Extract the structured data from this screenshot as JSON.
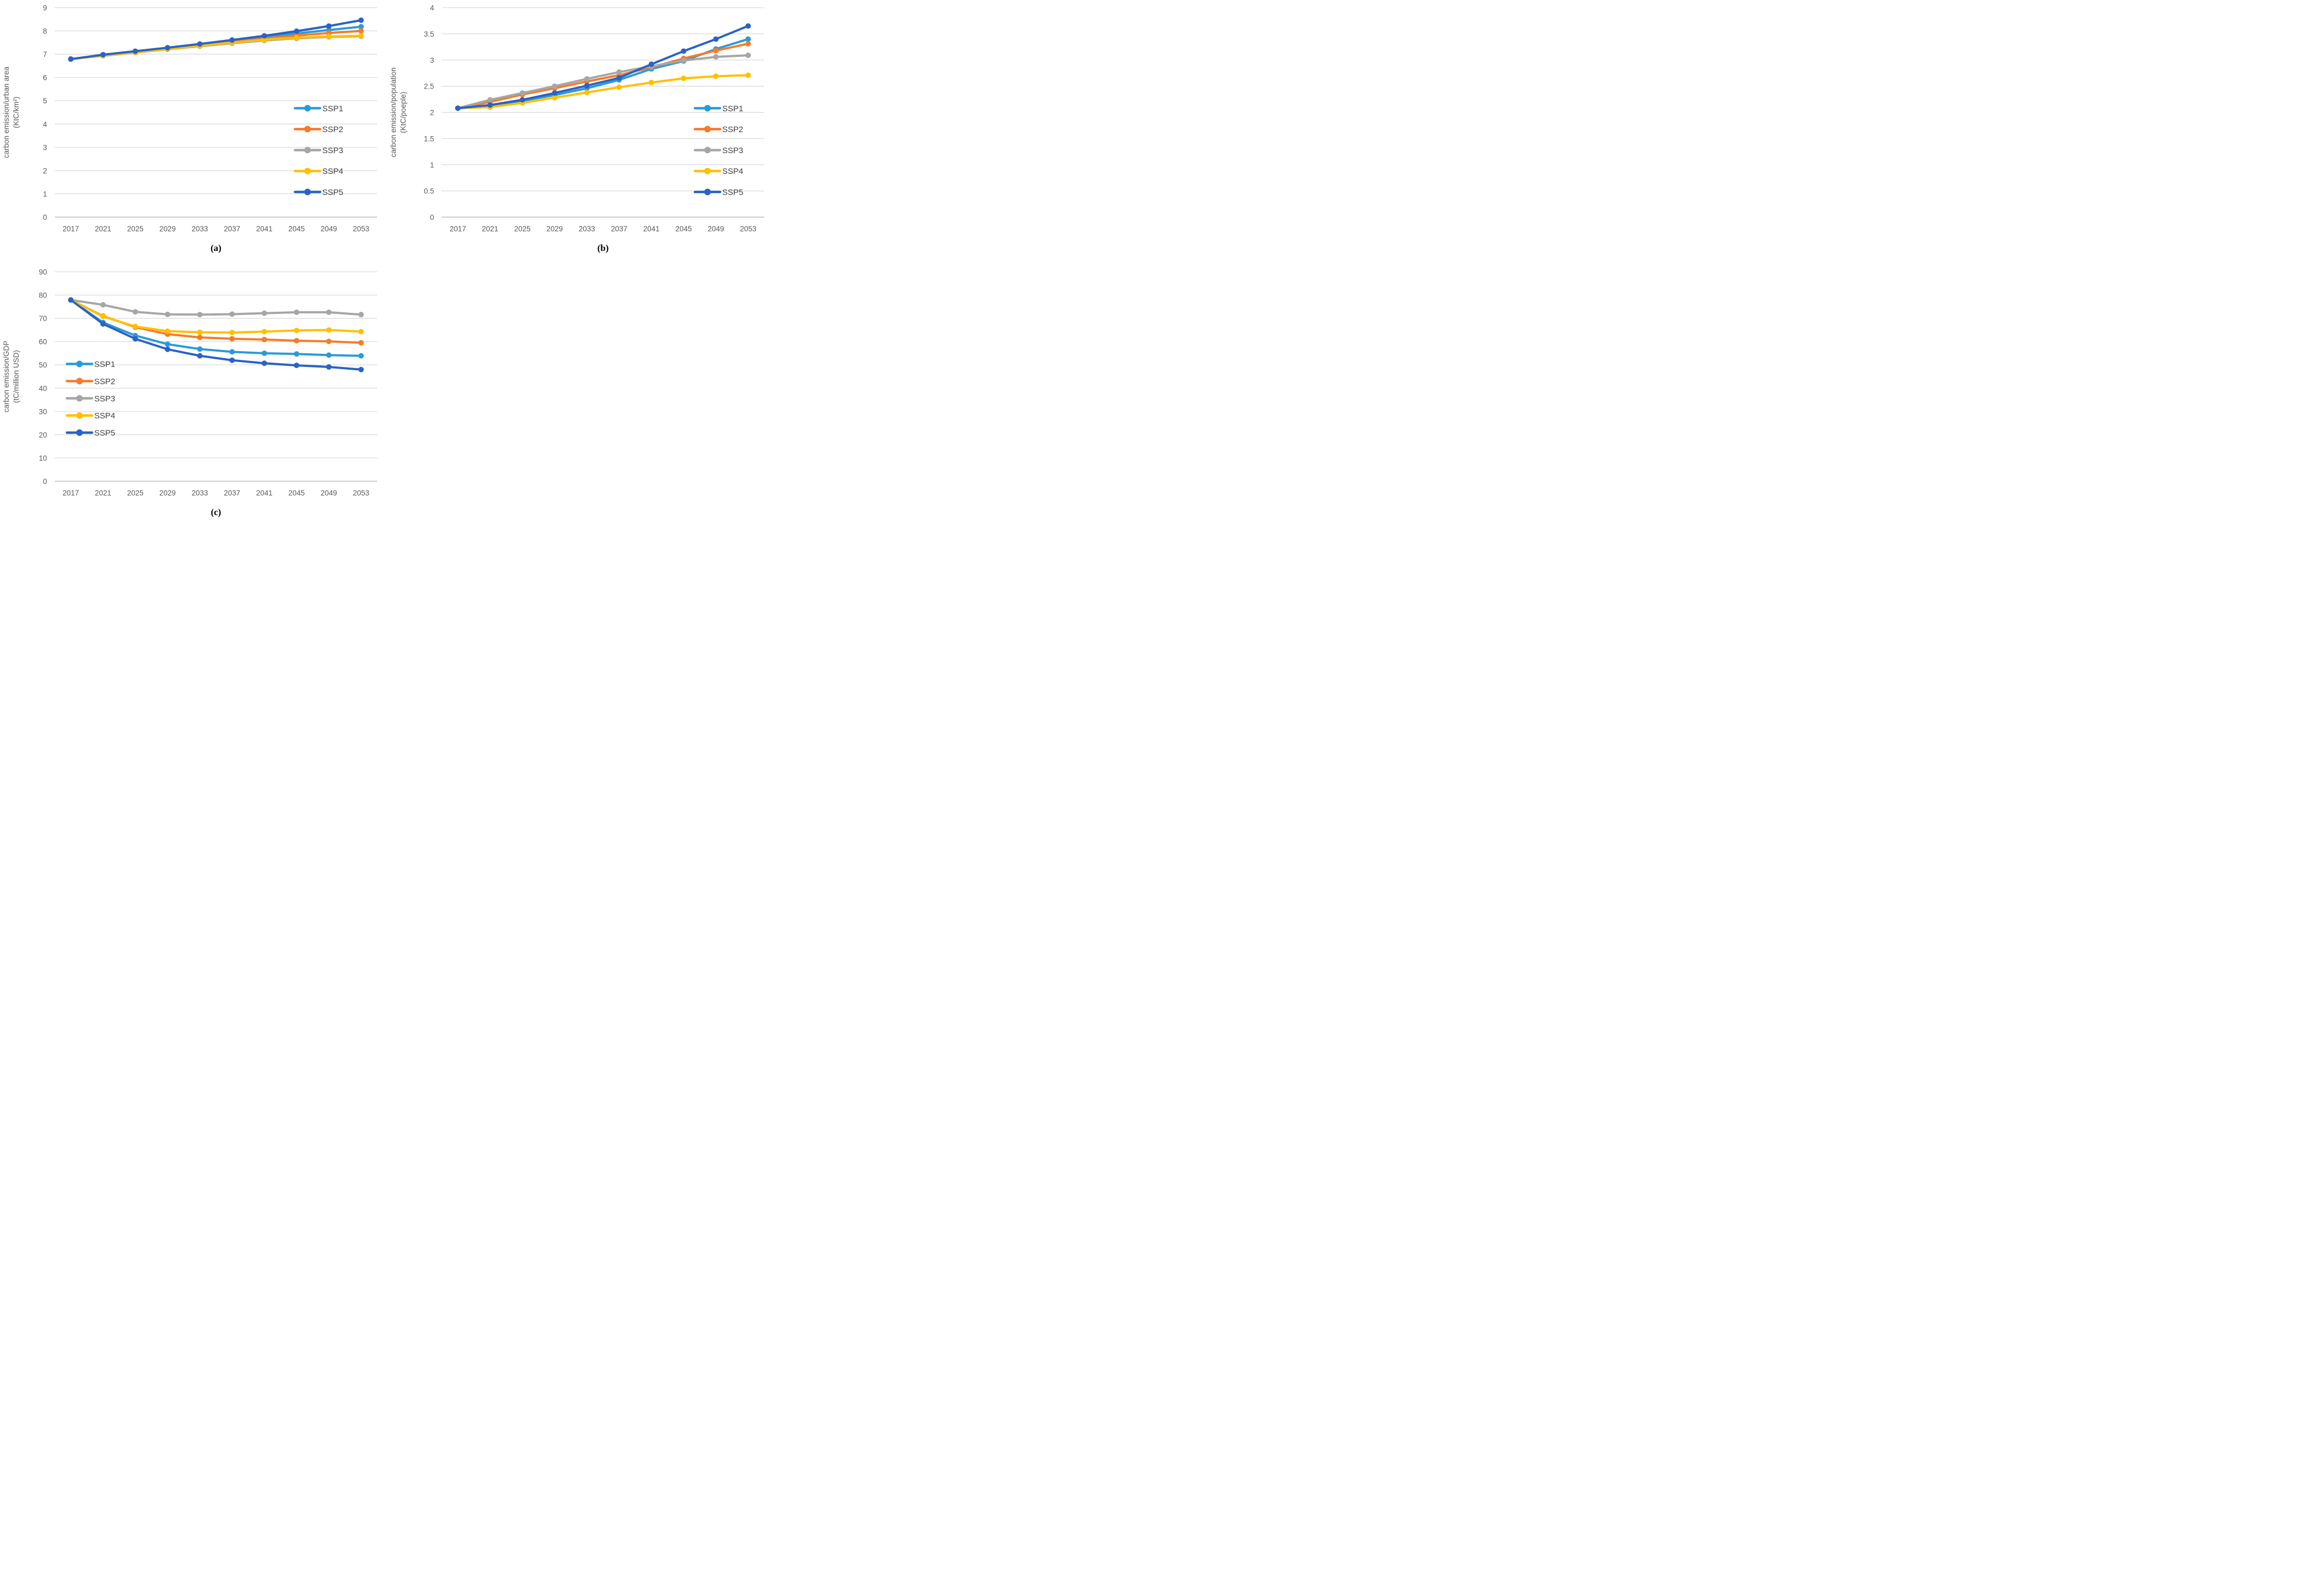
{
  "figure_colors": {
    "gridline": "#D9D9D9",
    "axis_line": "#C6C6C6",
    "tick_text": "#595959",
    "caption_text": "#000000"
  },
  "chart_data": [
    {
      "id": "chart-a",
      "type": "line",
      "caption": "(a)",
      "ylabel_lines": [
        "carbon emission/urban area",
        "(KtC/km²)"
      ],
      "categories": [
        "2017",
        "2021",
        "2025",
        "2029",
        "2033",
        "2037",
        "2041",
        "2045",
        "2049",
        "2053"
      ],
      "y_axis": {
        "min": 0,
        "max": 9,
        "ticks": [
          0,
          1,
          2,
          3,
          4,
          5,
          6,
          7,
          8,
          9
        ]
      },
      "grid": true,
      "legend": {
        "position": "inside-right",
        "x_frac": 0.745,
        "first_y_frac": 0.48,
        "row_gap_frac": 0.1
      },
      "series": [
        {
          "name": "SSP1",
          "color": "#2B9BD7",
          "values": [
            6.79,
            6.96,
            7.11,
            7.26,
            7.41,
            7.57,
            7.73,
            7.89,
            8.04,
            8.18
          ]
        },
        {
          "name": "SSP2",
          "color": "#F57B2B",
          "values": [
            6.79,
            6.95,
            7.1,
            7.24,
            7.38,
            7.53,
            7.67,
            7.8,
            7.91,
            8.0
          ]
        },
        {
          "name": "SSP3",
          "color": "#A6A6A6",
          "values": [
            6.79,
            6.93,
            7.07,
            7.21,
            7.34,
            7.47,
            7.59,
            7.68,
            7.74,
            7.77
          ]
        },
        {
          "name": "SSP4",
          "color": "#FFC000",
          "values": [
            6.79,
            6.94,
            7.08,
            7.22,
            7.36,
            7.5,
            7.62,
            7.71,
            7.76,
            7.79
          ]
        },
        {
          "name": "SSP5",
          "color": "#2A62C6",
          "values": [
            6.79,
            6.98,
            7.13,
            7.28,
            7.44,
            7.61,
            7.79,
            7.99,
            8.21,
            8.46
          ]
        }
      ]
    },
    {
      "id": "chart-b",
      "type": "line",
      "caption": "(b)",
      "ylabel_lines": [
        "carbon emission/population",
        "(KtC/poeple)"
      ],
      "categories": [
        "2017",
        "2021",
        "2025",
        "2029",
        "2033",
        "2037",
        "2041",
        "2045",
        "2049",
        "2053"
      ],
      "y_axis": {
        "min": 0,
        "max": 4,
        "ticks": [
          0,
          0.5,
          1,
          1.5,
          2,
          2.5,
          3,
          3.5,
          4
        ]
      },
      "grid": true,
      "legend": {
        "position": "inside-right",
        "x_frac": 0.785,
        "first_y_frac": 0.48,
        "row_gap_frac": 0.1
      },
      "series": [
        {
          "name": "SSP1",
          "color": "#2B9BD7",
          "values": [
            2.08,
            2.13,
            2.22,
            2.33,
            2.46,
            2.62,
            2.83,
            2.98,
            3.21,
            3.4
          ]
        },
        {
          "name": "SSP2",
          "color": "#F57B2B",
          "values": [
            2.08,
            2.2,
            2.34,
            2.46,
            2.59,
            2.71,
            2.86,
            3.03,
            3.18,
            3.31
          ]
        },
        {
          "name": "SSP3",
          "color": "#A6A6A6",
          "values": [
            2.08,
            2.24,
            2.37,
            2.5,
            2.64,
            2.77,
            2.88,
            2.99,
            3.06,
            3.09
          ]
        },
        {
          "name": "SSP4",
          "color": "#FFC000",
          "values": [
            2.08,
            2.1,
            2.18,
            2.28,
            2.38,
            2.48,
            2.57,
            2.65,
            2.69,
            2.71
          ]
        },
        {
          "name": "SSP5",
          "color": "#2A62C6",
          "values": [
            2.08,
            2.14,
            2.24,
            2.37,
            2.51,
            2.66,
            2.92,
            3.17,
            3.4,
            3.65
          ]
        }
      ]
    },
    {
      "id": "chart-c",
      "type": "line",
      "caption": "(c)",
      "ylabel_lines": [
        "carbon emission/GDP",
        "(tC/million USD)"
      ],
      "categories": [
        "2017",
        "2021",
        "2025",
        "2029",
        "2033",
        "2037",
        "2041",
        "2045",
        "2049",
        "2053"
      ],
      "y_axis": {
        "min": 0,
        "max": 90,
        "ticks": [
          0,
          10,
          20,
          30,
          40,
          50,
          60,
          70,
          80,
          90
        ]
      },
      "grid": true,
      "legend": {
        "position": "inside-left",
        "x_frac": 0.038,
        "first_y_frac": 0.44,
        "row_gap_frac": 0.082
      },
      "series": [
        {
          "name": "SSP1",
          "color": "#2B9BD7",
          "values": [
            77.9,
            68.2,
            62.6,
            58.9,
            56.8,
            55.6,
            55.0,
            54.7,
            54.2,
            53.9
          ]
        },
        {
          "name": "SSP2",
          "color": "#F57B2B",
          "values": [
            77.9,
            71.0,
            66.2,
            63.2,
            61.8,
            61.2,
            60.9,
            60.4,
            60.1,
            59.5
          ]
        },
        {
          "name": "SSP3",
          "color": "#A6A6A6",
          "values": [
            77.9,
            75.8,
            72.8,
            71.7,
            71.6,
            71.8,
            72.2,
            72.6,
            72.6,
            71.6
          ]
        },
        {
          "name": "SSP4",
          "color": "#FFC000",
          "values": [
            77.9,
            70.8,
            66.5,
            64.5,
            64.0,
            63.9,
            64.3,
            64.8,
            65.0,
            64.3
          ]
        },
        {
          "name": "SSP5",
          "color": "#2A62C6",
          "values": [
            77.9,
            67.6,
            61.2,
            56.7,
            53.9,
            52.0,
            50.7,
            49.8,
            49.1,
            48.0
          ]
        }
      ]
    }
  ]
}
